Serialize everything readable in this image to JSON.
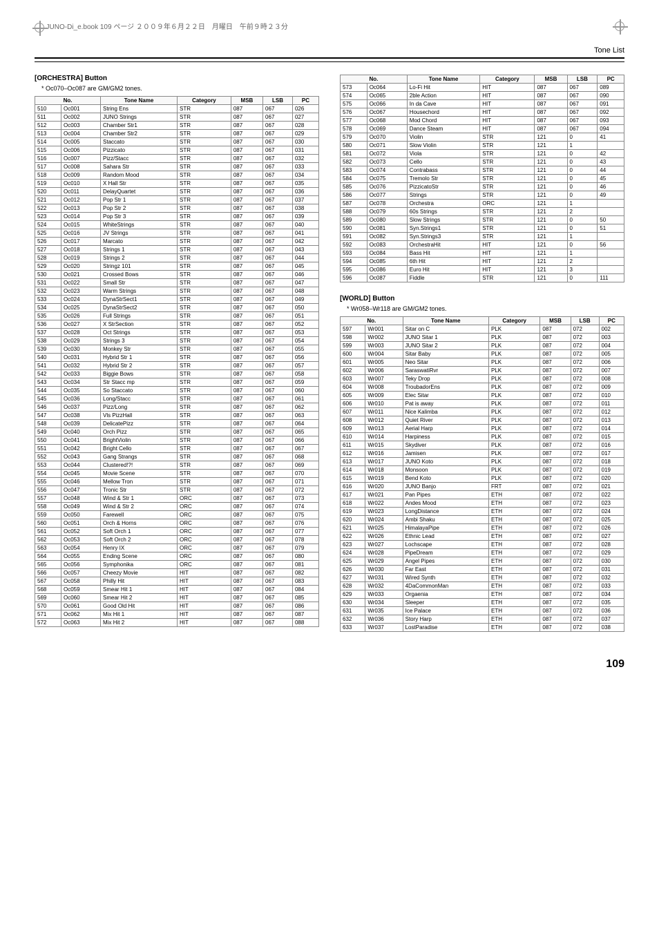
{
  "header": {
    "book_ref": "JUNO-Di_e.book  109 ページ  ２００９年６月２２日　月曜日　午前９時２３分",
    "tone_list": "Tone List",
    "page_number": "109"
  },
  "sections": [
    {
      "title": "[ORCHESTRA] Button",
      "note": "*  Oc070–Oc087 are GM/GM2 tones.",
      "columns": [
        "No.",
        "",
        "Tone Name",
        "Category",
        "MSB",
        "LSB",
        "PC"
      ],
      "col_merge": [
        2,
        0,
        0,
        0,
        0,
        0,
        0
      ],
      "rows": [
        [
          "510",
          "Oc001",
          "String Ens",
          "STR",
          "087",
          "067",
          "026"
        ],
        [
          "511",
          "Oc002",
          "JUNO Strings",
          "STR",
          "087",
          "067",
          "027"
        ],
        [
          "512",
          "Oc003",
          "Chamber Str1",
          "STR",
          "087",
          "067",
          "028"
        ],
        [
          "513",
          "Oc004",
          "Chamber Str2",
          "STR",
          "087",
          "067",
          "029"
        ],
        [
          "514",
          "Oc005",
          "Staccato",
          "STR",
          "087",
          "067",
          "030"
        ],
        [
          "515",
          "Oc006",
          "Pizzicato",
          "STR",
          "087",
          "067",
          "031"
        ],
        [
          "516",
          "Oc007",
          "Pizz/Stacc",
          "STR",
          "087",
          "067",
          "032"
        ],
        [
          "517",
          "Oc008",
          "Sahara Str",
          "STR",
          "087",
          "067",
          "033"
        ],
        [
          "518",
          "Oc009",
          "Random Mood",
          "STR",
          "087",
          "067",
          "034"
        ],
        [
          "519",
          "Oc010",
          "X Hall Str",
          "STR",
          "087",
          "067",
          "035"
        ],
        [
          "520",
          "Oc011",
          "DelayQuartet",
          "STR",
          "087",
          "067",
          "036"
        ],
        [
          "521",
          "Oc012",
          "Pop Str 1",
          "STR",
          "087",
          "067",
          "037"
        ],
        [
          "522",
          "Oc013",
          "Pop Str 2",
          "STR",
          "087",
          "067",
          "038"
        ],
        [
          "523",
          "Oc014",
          "Pop Str 3",
          "STR",
          "087",
          "067",
          "039"
        ],
        [
          "524",
          "Oc015",
          "WhiteStrings",
          "STR",
          "087",
          "067",
          "040"
        ],
        [
          "525",
          "Oc016",
          "JV Strings",
          "STR",
          "087",
          "067",
          "041"
        ],
        [
          "526",
          "Oc017",
          "Marcato",
          "STR",
          "087",
          "067",
          "042"
        ],
        [
          "527",
          "Oc018",
          "Strings 1",
          "STR",
          "087",
          "067",
          "043"
        ],
        [
          "528",
          "Oc019",
          "Strings 2",
          "STR",
          "087",
          "067",
          "044"
        ],
        [
          "529",
          "Oc020",
          "Stringz 101",
          "STR",
          "087",
          "067",
          "045"
        ],
        [
          "530",
          "Oc021",
          "Crossed Bows",
          "STR",
          "087",
          "067",
          "046"
        ],
        [
          "531",
          "Oc022",
          "Small Str",
          "STR",
          "087",
          "067",
          "047"
        ],
        [
          "532",
          "Oc023",
          "Warm Strings",
          "STR",
          "087",
          "067",
          "048"
        ],
        [
          "533",
          "Oc024",
          "DynaStrSect1",
          "STR",
          "087",
          "067",
          "049"
        ],
        [
          "534",
          "Oc025",
          "DynaStrSect2",
          "STR",
          "087",
          "067",
          "050"
        ],
        [
          "535",
          "Oc026",
          "Full Strings",
          "STR",
          "087",
          "067",
          "051"
        ],
        [
          "536",
          "Oc027",
          "X StrSection",
          "STR",
          "087",
          "067",
          "052"
        ],
        [
          "537",
          "Oc028",
          "Oct Strings",
          "STR",
          "087",
          "067",
          "053"
        ],
        [
          "538",
          "Oc029",
          "Strings 3",
          "STR",
          "087",
          "067",
          "054"
        ],
        [
          "539",
          "Oc030",
          "Monkey Str",
          "STR",
          "087",
          "067",
          "055"
        ],
        [
          "540",
          "Oc031",
          "Hybrid Str 1",
          "STR",
          "087",
          "067",
          "056"
        ],
        [
          "541",
          "Oc032",
          "Hybrid Str 2",
          "STR",
          "087",
          "067",
          "057"
        ],
        [
          "542",
          "Oc033",
          "Biggie Bows",
          "STR",
          "087",
          "067",
          "058"
        ],
        [
          "543",
          "Oc034",
          "Str Stacc mp",
          "STR",
          "087",
          "067",
          "059"
        ],
        [
          "544",
          "Oc035",
          "So Staccato",
          "STR",
          "087",
          "067",
          "060"
        ],
        [
          "545",
          "Oc036",
          "Long/Stacc",
          "STR",
          "087",
          "067",
          "061"
        ],
        [
          "546",
          "Oc037",
          "Pizz/Long",
          "STR",
          "087",
          "067",
          "062"
        ],
        [
          "547",
          "Oc038",
          "Vls PizzHall",
          "STR",
          "087",
          "067",
          "063"
        ],
        [
          "548",
          "Oc039",
          "DelicatePizz",
          "STR",
          "087",
          "067",
          "064"
        ],
        [
          "549",
          "Oc040",
          "Orch Pizz",
          "STR",
          "087",
          "067",
          "065"
        ],
        [
          "550",
          "Oc041",
          "BrightViolin",
          "STR",
          "087",
          "067",
          "066"
        ],
        [
          "551",
          "Oc042",
          "Bright Cello",
          "STR",
          "087",
          "067",
          "067"
        ],
        [
          "552",
          "Oc043",
          "Gang Strangs",
          "STR",
          "087",
          "067",
          "068"
        ],
        [
          "553",
          "Oc044",
          "Clustered!?!",
          "STR",
          "087",
          "067",
          "069"
        ],
        [
          "554",
          "Oc045",
          "Movie Scene",
          "STR",
          "087",
          "067",
          "070"
        ],
        [
          "555",
          "Oc046",
          "Mellow Tron",
          "STR",
          "087",
          "067",
          "071"
        ],
        [
          "556",
          "Oc047",
          "Tronic Str",
          "STR",
          "087",
          "067",
          "072"
        ],
        [
          "557",
          "Oc048",
          "Wind & Str 1",
          "ORC",
          "087",
          "067",
          "073"
        ],
        [
          "558",
          "Oc049",
          "Wind & Str 2",
          "ORC",
          "087",
          "067",
          "074"
        ],
        [
          "559",
          "Oc050",
          "Farewell",
          "ORC",
          "087",
          "067",
          "075"
        ],
        [
          "560",
          "Oc051",
          "Orch & Horns",
          "ORC",
          "087",
          "067",
          "076"
        ],
        [
          "561",
          "Oc052",
          "Soft Orch 1",
          "ORC",
          "087",
          "067",
          "077"
        ],
        [
          "562",
          "Oc053",
          "Soft Orch 2",
          "ORC",
          "087",
          "067",
          "078"
        ],
        [
          "563",
          "Oc054",
          "Henry IX",
          "ORC",
          "087",
          "067",
          "079"
        ],
        [
          "564",
          "Oc055",
          "Ending Scene",
          "ORC",
          "087",
          "067",
          "080"
        ],
        [
          "565",
          "Oc056",
          "Symphonika",
          "ORC",
          "087",
          "067",
          "081"
        ],
        [
          "566",
          "Oc057",
          "Cheezy Movie",
          "HIT",
          "087",
          "067",
          "082"
        ],
        [
          "567",
          "Oc058",
          "Philly Hit",
          "HIT",
          "087",
          "067",
          "083"
        ],
        [
          "568",
          "Oc059",
          "Smear Hit 1",
          "HIT",
          "087",
          "067",
          "084"
        ],
        [
          "569",
          "Oc060",
          "Smear Hit 2",
          "HIT",
          "087",
          "067",
          "085"
        ],
        [
          "570",
          "Oc061",
          "Good Old Hit",
          "HIT",
          "087",
          "067",
          "086"
        ],
        [
          "571",
          "Oc062",
          "Mix Hit 1",
          "HIT",
          "087",
          "067",
          "087"
        ],
        [
          "572",
          "Oc063",
          "Mix Hit 2",
          "HIT",
          "087",
          "067",
          "088"
        ]
      ]
    },
    {
      "title": "",
      "note": "",
      "columns": [
        "No.",
        "",
        "Tone Name",
        "Category",
        "MSB",
        "LSB",
        "PC"
      ],
      "rows": [
        [
          "573",
          "Oc064",
          "Lo-Fi Hit",
          "HIT",
          "087",
          "067",
          "089"
        ],
        [
          "574",
          "Oc065",
          "2ble Action",
          "HIT",
          "087",
          "067",
          "090"
        ],
        [
          "575",
          "Oc066",
          "In da Cave",
          "HIT",
          "087",
          "067",
          "091"
        ],
        [
          "576",
          "Oc067",
          "Housechord",
          "HIT",
          "087",
          "067",
          "092"
        ],
        [
          "577",
          "Oc068",
          "Mod Chord",
          "HIT",
          "087",
          "067",
          "093"
        ],
        [
          "578",
          "Oc069",
          "Dance Steam",
          "HIT",
          "087",
          "067",
          "094"
        ],
        [
          "579",
          "Oc070",
          "Violin",
          "STR",
          "121",
          "0",
          "41"
        ],
        [
          "580",
          "Oc071",
          "Slow Violin",
          "STR",
          "121",
          "1",
          ""
        ],
        [
          "581",
          "Oc072",
          "Viola",
          "STR",
          "121",
          "0",
          "42"
        ],
        [
          "582",
          "Oc073",
          "Cello",
          "STR",
          "121",
          "0",
          "43"
        ],
        [
          "583",
          "Oc074",
          "Contrabass",
          "STR",
          "121",
          "0",
          "44"
        ],
        [
          "584",
          "Oc075",
          "Tremolo Str",
          "STR",
          "121",
          "0",
          "45"
        ],
        [
          "585",
          "Oc076",
          "PizzicatoStr",
          "STR",
          "121",
          "0",
          "46"
        ],
        [
          "586",
          "Oc077",
          "Strings",
          "STR",
          "121",
          "0",
          "49"
        ],
        [
          "587",
          "Oc078",
          "Orchestra",
          "ORC",
          "121",
          "1",
          ""
        ],
        [
          "588",
          "Oc079",
          "60s Strings",
          "STR",
          "121",
          "2",
          ""
        ],
        [
          "589",
          "Oc080",
          "Slow Strings",
          "STR",
          "121",
          "0",
          "50"
        ],
        [
          "590",
          "Oc081",
          "Syn.Strings1",
          "STR",
          "121",
          "0",
          "51"
        ],
        [
          "591",
          "Oc082",
          "Syn.Strings3",
          "STR",
          "121",
          "1",
          ""
        ],
        [
          "592",
          "Oc083",
          "OrchestraHit",
          "HIT",
          "121",
          "0",
          "56"
        ],
        [
          "593",
          "Oc084",
          "Bass Hit",
          "HIT",
          "121",
          "1",
          ""
        ],
        [
          "594",
          "Oc085",
          "6th Hit",
          "HIT",
          "121",
          "2",
          ""
        ],
        [
          "595",
          "Oc086",
          "Euro Hit",
          "HIT",
          "121",
          "3",
          ""
        ],
        [
          "596",
          "Oc087",
          "Fiddle",
          "STR",
          "121",
          "0",
          "111"
        ]
      ]
    },
    {
      "title": "[WORLD] Button",
      "note": "*  Wr058–Wr118 are GM/GM2 tones.",
      "columns": [
        "No.",
        "",
        "Tone Name",
        "Category",
        "MSB",
        "LSB",
        "PC"
      ],
      "rows": [
        [
          "597",
          "Wr001",
          "Sitar on C",
          "PLK",
          "087",
          "072",
          "002"
        ],
        [
          "598",
          "Wr002",
          "JUNO Sitar 1",
          "PLK",
          "087",
          "072",
          "003"
        ],
        [
          "599",
          "Wr003",
          "JUNO Sitar 2",
          "PLK",
          "087",
          "072",
          "004"
        ],
        [
          "600",
          "Wr004",
          "Sitar Baby",
          "PLK",
          "087",
          "072",
          "005"
        ],
        [
          "601",
          "Wr005",
          "Neo Sitar",
          "PLK",
          "087",
          "072",
          "006"
        ],
        [
          "602",
          "Wr006",
          "SaraswatiRvr",
          "PLK",
          "087",
          "072",
          "007"
        ],
        [
          "603",
          "Wr007",
          "Teky Drop",
          "PLK",
          "087",
          "072",
          "008"
        ],
        [
          "604",
          "Wr008",
          "TroubadorEns",
          "PLK",
          "087",
          "072",
          "009"
        ],
        [
          "605",
          "Wr009",
          "Elec Sitar",
          "PLK",
          "087",
          "072",
          "010"
        ],
        [
          "606",
          "Wr010",
          "Pat is away",
          "PLK",
          "087",
          "072",
          "011"
        ],
        [
          "607",
          "Wr011",
          "Nice Kalimba",
          "PLK",
          "087",
          "072",
          "012"
        ],
        [
          "608",
          "Wr012",
          "Quiet River",
          "PLK",
          "087",
          "072",
          "013"
        ],
        [
          "609",
          "Wr013",
          "Aerial Harp",
          "PLK",
          "087",
          "072",
          "014"
        ],
        [
          "610",
          "Wr014",
          "Harpiness",
          "PLK",
          "087",
          "072",
          "015"
        ],
        [
          "611",
          "Wr015",
          "Skydiver",
          "PLK",
          "087",
          "072",
          "016"
        ],
        [
          "612",
          "Wr016",
          "Jamisen",
          "PLK",
          "087",
          "072",
          "017"
        ],
        [
          "613",
          "Wr017",
          "JUNO Koto",
          "PLK",
          "087",
          "072",
          "018"
        ],
        [
          "614",
          "Wr018",
          "Monsoon",
          "PLK",
          "087",
          "072",
          "019"
        ],
        [
          "615",
          "Wr019",
          "Bend Koto",
          "PLK",
          "087",
          "072",
          "020"
        ],
        [
          "616",
          "Wr020",
          "JUNO Banjo",
          "FRT",
          "087",
          "072",
          "021"
        ],
        [
          "617",
          "Wr021",
          "Pan Pipes",
          "ETH",
          "087",
          "072",
          "022"
        ],
        [
          "618",
          "Wr022",
          "Andes Mood",
          "ETH",
          "087",
          "072",
          "023"
        ],
        [
          "619",
          "Wr023",
          "LongDistance",
          "ETH",
          "087",
          "072",
          "024"
        ],
        [
          "620",
          "Wr024",
          "Ambi Shaku",
          "ETH",
          "087",
          "072",
          "025"
        ],
        [
          "621",
          "Wr025",
          "HimalayaPipe",
          "ETH",
          "087",
          "072",
          "026"
        ],
        [
          "622",
          "Wr026",
          "Ethnic Lead",
          "ETH",
          "087",
          "072",
          "027"
        ],
        [
          "623",
          "Wr027",
          "Lochscape",
          "ETH",
          "087",
          "072",
          "028"
        ],
        [
          "624",
          "Wr028",
          "PipeDream",
          "ETH",
          "087",
          "072",
          "029"
        ],
        [
          "625",
          "Wr029",
          "Angel Pipes",
          "ETH",
          "087",
          "072",
          "030"
        ],
        [
          "626",
          "Wr030",
          "Far East",
          "ETH",
          "087",
          "072",
          "031"
        ],
        [
          "627",
          "Wr031",
          "Wired Synth",
          "ETH",
          "087",
          "072",
          "032"
        ],
        [
          "628",
          "Wr032",
          "4DaCommonMan",
          "ETH",
          "087",
          "072",
          "033"
        ],
        [
          "629",
          "Wr033",
          "Orgaenia",
          "ETH",
          "087",
          "072",
          "034"
        ],
        [
          "630",
          "Wr034",
          "Sleeper",
          "ETH",
          "087",
          "072",
          "035"
        ],
        [
          "631",
          "Wr035",
          "Ice Palace",
          "ETH",
          "087",
          "072",
          "036"
        ],
        [
          "632",
          "Wr036",
          "Story Harp",
          "ETH",
          "087",
          "072",
          "037"
        ],
        [
          "633",
          "Wr037",
          "LostParadise",
          "ETH",
          "087",
          "072",
          "038"
        ]
      ]
    }
  ]
}
